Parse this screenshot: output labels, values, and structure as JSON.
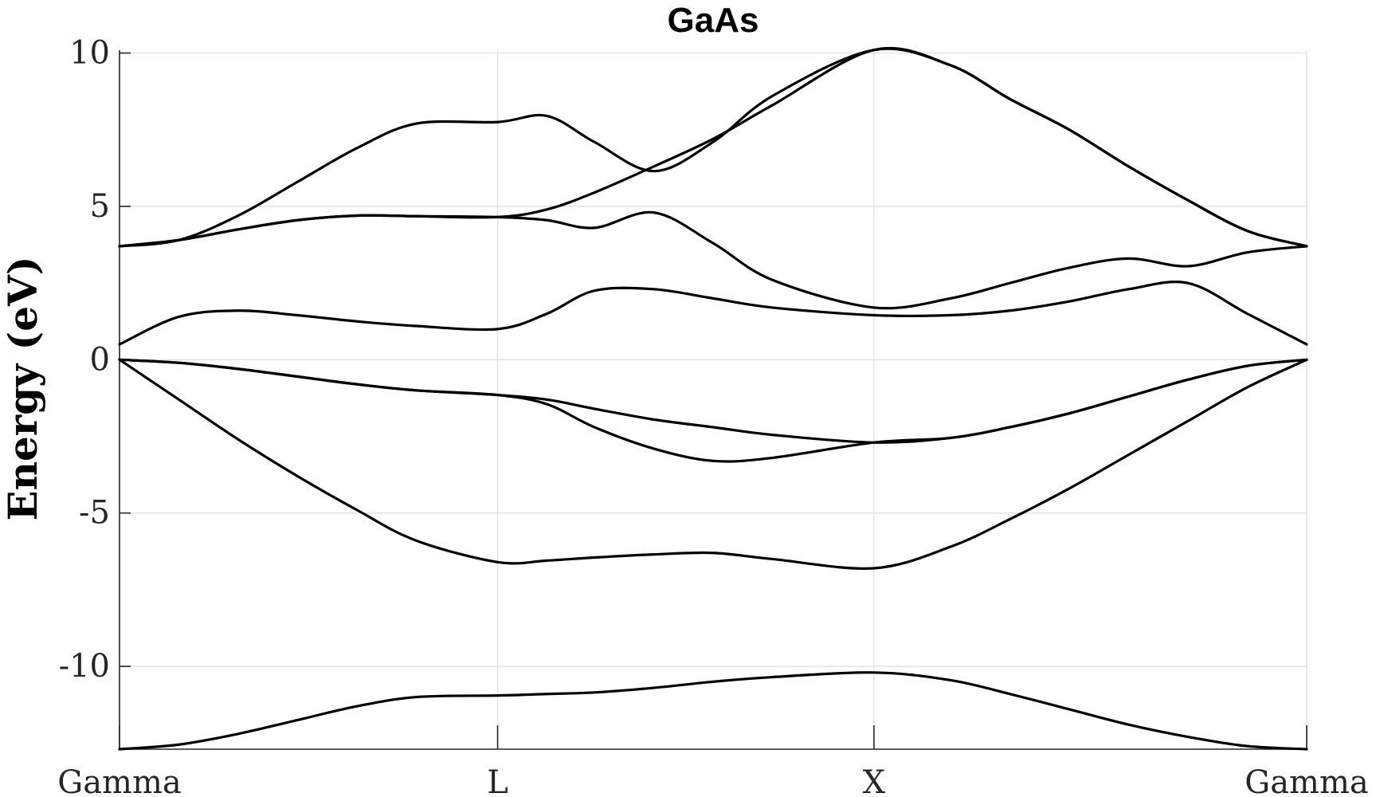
{
  "chart_data": {
    "type": "line",
    "title": "GaAs",
    "ylabel": "Energy (eV)",
    "xlabel": "",
    "ylim": [
      -12.7,
      10.3
    ],
    "yticks": [
      10,
      5,
      0,
      -5,
      -10
    ],
    "ytick_labels": [
      "10",
      "5",
      "0",
      "-5",
      "-10"
    ],
    "xlim": [
      0,
      1
    ],
    "xticks": [
      0,
      0.3185,
      0.6355,
      1
    ],
    "xtick_labels": [
      "Gamma",
      "L",
      "X",
      "Gamma"
    ],
    "grid": true,
    "series": [
      {
        "x": [
          0,
          0.05,
          0.1,
          0.15,
          0.2,
          0.25,
          0.3185,
          0.36,
          0.4,
          0.45,
          0.5,
          0.55,
          0.6355,
          0.7,
          0.75,
          0.8,
          0.85,
          0.9,
          0.95,
          1
        ],
        "values": [
          -12.7,
          -12.55,
          -12.2,
          -11.75,
          -11.3,
          -11.0,
          -10.95,
          -10.9,
          -10.85,
          -10.7,
          -10.5,
          -10.35,
          -10.2,
          -10.45,
          -10.9,
          -11.4,
          -11.9,
          -12.3,
          -12.6,
          -12.7
        ]
      },
      {
        "x": [
          0,
          0.05,
          0.1,
          0.15,
          0.2,
          0.25,
          0.3185,
          0.36,
          0.4,
          0.45,
          0.5,
          0.55,
          0.6355,
          0.7,
          0.75,
          0.8,
          0.85,
          0.9,
          0.95,
          1
        ],
        "values": [
          0,
          -1.3,
          -2.6,
          -3.8,
          -4.9,
          -5.9,
          -6.6,
          -6.55,
          -6.45,
          -6.35,
          -6.3,
          -6.5,
          -6.8,
          -6.1,
          -5.2,
          -4.2,
          -3.1,
          -2.0,
          -0.9,
          0
        ]
      },
      {
        "x": [
          0,
          0.05,
          0.1,
          0.15,
          0.2,
          0.25,
          0.3185,
          0.36,
          0.4,
          0.45,
          0.5,
          0.55,
          0.6355,
          0.7,
          0.75,
          0.8,
          0.85,
          0.9,
          0.95,
          1
        ],
        "values": [
          0,
          -0.1,
          -0.3,
          -0.55,
          -0.8,
          -1.0,
          -1.15,
          -1.45,
          -2.2,
          -2.9,
          -3.3,
          -3.2,
          -2.7,
          -2.55,
          -2.2,
          -1.75,
          -1.2,
          -0.65,
          -0.2,
          0
        ]
      },
      {
        "x": [
          0,
          0.05,
          0.1,
          0.15,
          0.2,
          0.25,
          0.3185,
          0.36,
          0.4,
          0.45,
          0.5,
          0.55,
          0.6355,
          0.7,
          0.75,
          0.8,
          0.85,
          0.9,
          0.95,
          1
        ],
        "values": [
          0,
          -0.1,
          -0.3,
          -0.55,
          -0.8,
          -1.0,
          -1.15,
          -1.3,
          -1.6,
          -1.95,
          -2.2,
          -2.45,
          -2.7,
          -2.55,
          -2.2,
          -1.75,
          -1.2,
          -0.65,
          -0.2,
          0
        ]
      },
      {
        "x": [
          0,
          0.05,
          0.1,
          0.15,
          0.2,
          0.25,
          0.3185,
          0.36,
          0.4,
          0.45,
          0.5,
          0.55,
          0.6355,
          0.7,
          0.75,
          0.8,
          0.85,
          0.9,
          0.95,
          1
        ],
        "values": [
          0.5,
          1.4,
          1.6,
          1.45,
          1.25,
          1.1,
          1.0,
          1.5,
          2.25,
          2.3,
          2.0,
          1.7,
          1.45,
          1.45,
          1.6,
          1.9,
          2.3,
          2.5,
          1.5,
          0.5
        ]
      },
      {
        "x": [
          0,
          0.05,
          0.1,
          0.15,
          0.2,
          0.25,
          0.3185,
          0.36,
          0.4,
          0.45,
          0.5,
          0.55,
          0.6355,
          0.7,
          0.75,
          0.8,
          0.85,
          0.9,
          0.95,
          1
        ],
        "values": [
          3.7,
          3.9,
          4.25,
          4.55,
          4.7,
          4.68,
          4.65,
          4.55,
          4.3,
          4.8,
          3.8,
          2.6,
          1.7,
          2.0,
          2.5,
          3.0,
          3.3,
          3.05,
          3.5,
          3.7
        ]
      },
      {
        "x": [
          0,
          0.05,
          0.1,
          0.15,
          0.2,
          0.25,
          0.3185,
          0.36,
          0.4,
          0.45,
          0.5,
          0.55,
          0.6355,
          0.7,
          0.75,
          0.8,
          0.85,
          0.9,
          0.95,
          1
        ],
        "values": [
          3.7,
          3.9,
          4.25,
          4.55,
          4.7,
          4.68,
          4.65,
          4.9,
          5.45,
          6.3,
          7.2,
          8.3,
          10.1,
          9.6,
          8.5,
          7.5,
          6.3,
          5.2,
          4.2,
          3.7
        ]
      },
      {
        "x": [
          0,
          0.05,
          0.1,
          0.15,
          0.2,
          0.25,
          0.3185,
          0.36,
          0.4,
          0.45,
          0.5,
          0.55,
          0.6355,
          0.7,
          0.75,
          0.8,
          0.85,
          0.9,
          0.95,
          1
        ],
        "values": [
          3.7,
          3.9,
          4.7,
          5.8,
          6.9,
          7.7,
          7.75,
          7.95,
          7.1,
          6.15,
          7.1,
          8.6,
          10.1,
          9.6,
          8.5,
          7.5,
          6.3,
          5.2,
          4.2,
          3.7
        ]
      }
    ]
  }
}
